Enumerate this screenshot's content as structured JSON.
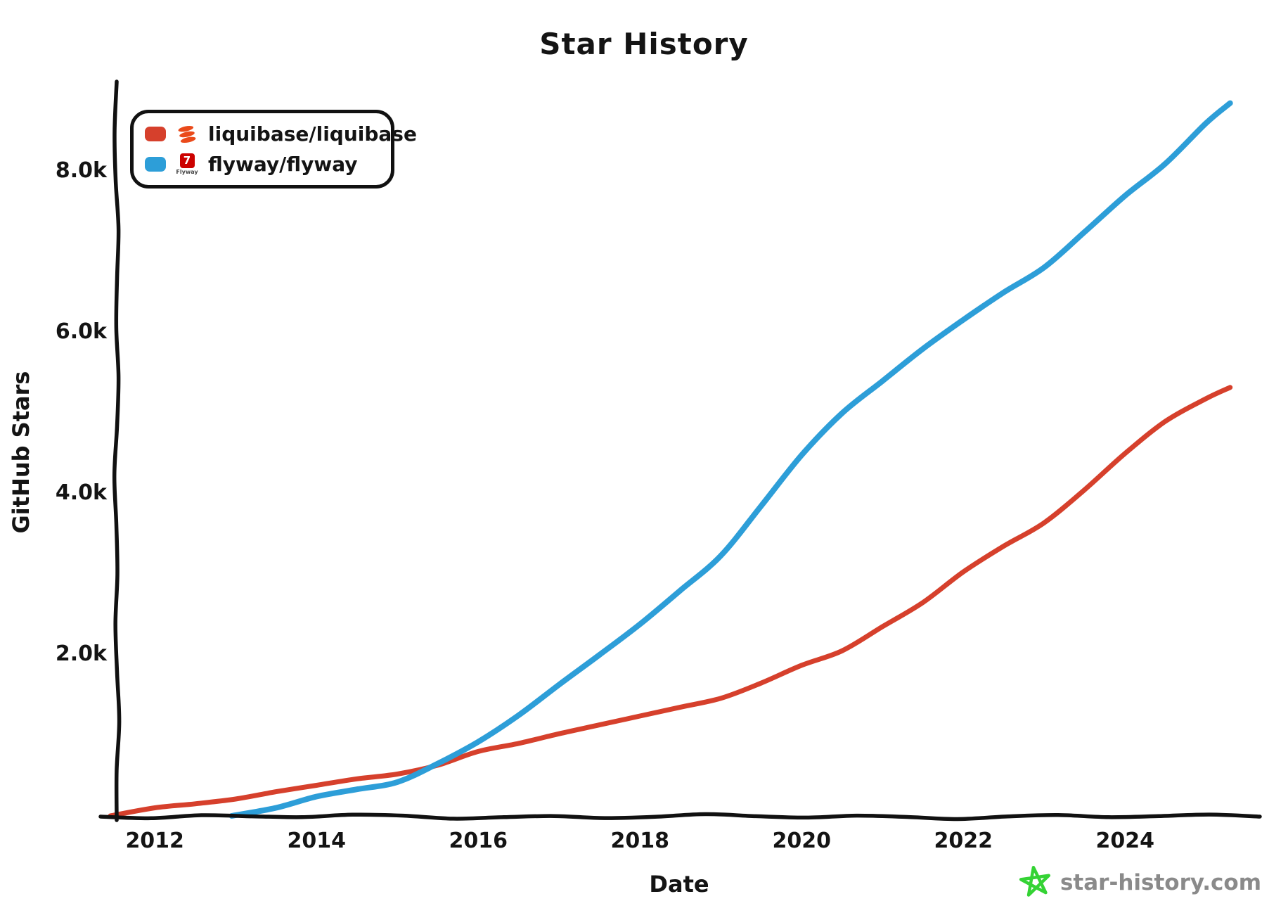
{
  "title": "Star History",
  "legend": {
    "items": [
      {
        "label": "liquibase/liquibase",
        "swatch_color": "#d6402c",
        "icon": "liquibase-logo",
        "icon_color": "#ea4a1a"
      },
      {
        "label": "flyway/flyway",
        "swatch_color": "#2d9ed8",
        "icon": "flyway-logo",
        "icon_color": "#cc0200",
        "icon_text": "Flyway"
      }
    ]
  },
  "watermark": {
    "text": "star-history.com",
    "text_color": "#8a8a8a",
    "star_color": "#34d334"
  },
  "chart_data": {
    "type": "line",
    "title": "Star History",
    "xlabel": "Date",
    "ylabel": "GitHub Stars",
    "grid": false,
    "legend_position": "top-left",
    "xlim": [
      2011.52,
      2025.65
    ],
    "ylim": [
      0,
      9100
    ],
    "x_ticks": [
      {
        "year": 2012,
        "label": "2012"
      },
      {
        "year": 2014,
        "label": "2014"
      },
      {
        "year": 2016,
        "label": "2016"
      },
      {
        "year": 2018,
        "label": "2018"
      },
      {
        "year": 2020,
        "label": "2020"
      },
      {
        "year": 2022,
        "label": "2022"
      },
      {
        "year": 2024,
        "label": "2024"
      }
    ],
    "y_ticks": [
      {
        "value": 2000,
        "label": "2.0k"
      },
      {
        "value": 4000,
        "label": "4.0k"
      },
      {
        "value": 6000,
        "label": "6.0k"
      },
      {
        "value": 8000,
        "label": "8.0k"
      }
    ],
    "series": [
      {
        "name": "liquibase/liquibase",
        "color": "#d6402c",
        "stroke_width": 7,
        "points": [
          [
            2011.45,
            0
          ],
          [
            2012,
            100
          ],
          [
            2012.5,
            150
          ],
          [
            2013,
            210
          ],
          [
            2013.5,
            300
          ],
          [
            2014,
            380
          ],
          [
            2014.5,
            460
          ],
          [
            2015,
            520
          ],
          [
            2015.5,
            630
          ],
          [
            2016,
            800
          ],
          [
            2016.5,
            900
          ],
          [
            2017,
            1020
          ],
          [
            2017.5,
            1130
          ],
          [
            2018,
            1240
          ],
          [
            2018.5,
            1350
          ],
          [
            2019,
            1460
          ],
          [
            2019.5,
            1650
          ],
          [
            2020,
            1870
          ],
          [
            2020.5,
            2050
          ],
          [
            2021,
            2350
          ],
          [
            2021.5,
            2650
          ],
          [
            2022,
            3030
          ],
          [
            2022.5,
            3350
          ],
          [
            2023,
            3640
          ],
          [
            2023.5,
            4050
          ],
          [
            2024,
            4500
          ],
          [
            2024.5,
            4900
          ],
          [
            2025,
            5180
          ],
          [
            2025.3,
            5320
          ]
        ]
      },
      {
        "name": "flyway/flyway",
        "color": "#2d9ed8",
        "stroke_width": 8,
        "points": [
          [
            2012.95,
            0
          ],
          [
            2013.5,
            100
          ],
          [
            2014,
            240
          ],
          [
            2014.5,
            330
          ],
          [
            2015,
            420
          ],
          [
            2015.5,
            650
          ],
          [
            2016,
            920
          ],
          [
            2016.5,
            1250
          ],
          [
            2017,
            1630
          ],
          [
            2017.5,
            2000
          ],
          [
            2018,
            2380
          ],
          [
            2018.5,
            2800
          ],
          [
            2019,
            3230
          ],
          [
            2019.5,
            3850
          ],
          [
            2020,
            4480
          ],
          [
            2020.5,
            5000
          ],
          [
            2021,
            5400
          ],
          [
            2021.5,
            5800
          ],
          [
            2022,
            6160
          ],
          [
            2022.5,
            6500
          ],
          [
            2023,
            6810
          ],
          [
            2023.5,
            7250
          ],
          [
            2024,
            7700
          ],
          [
            2024.5,
            8100
          ],
          [
            2025,
            8600
          ],
          [
            2025.3,
            8850
          ]
        ]
      }
    ]
  }
}
